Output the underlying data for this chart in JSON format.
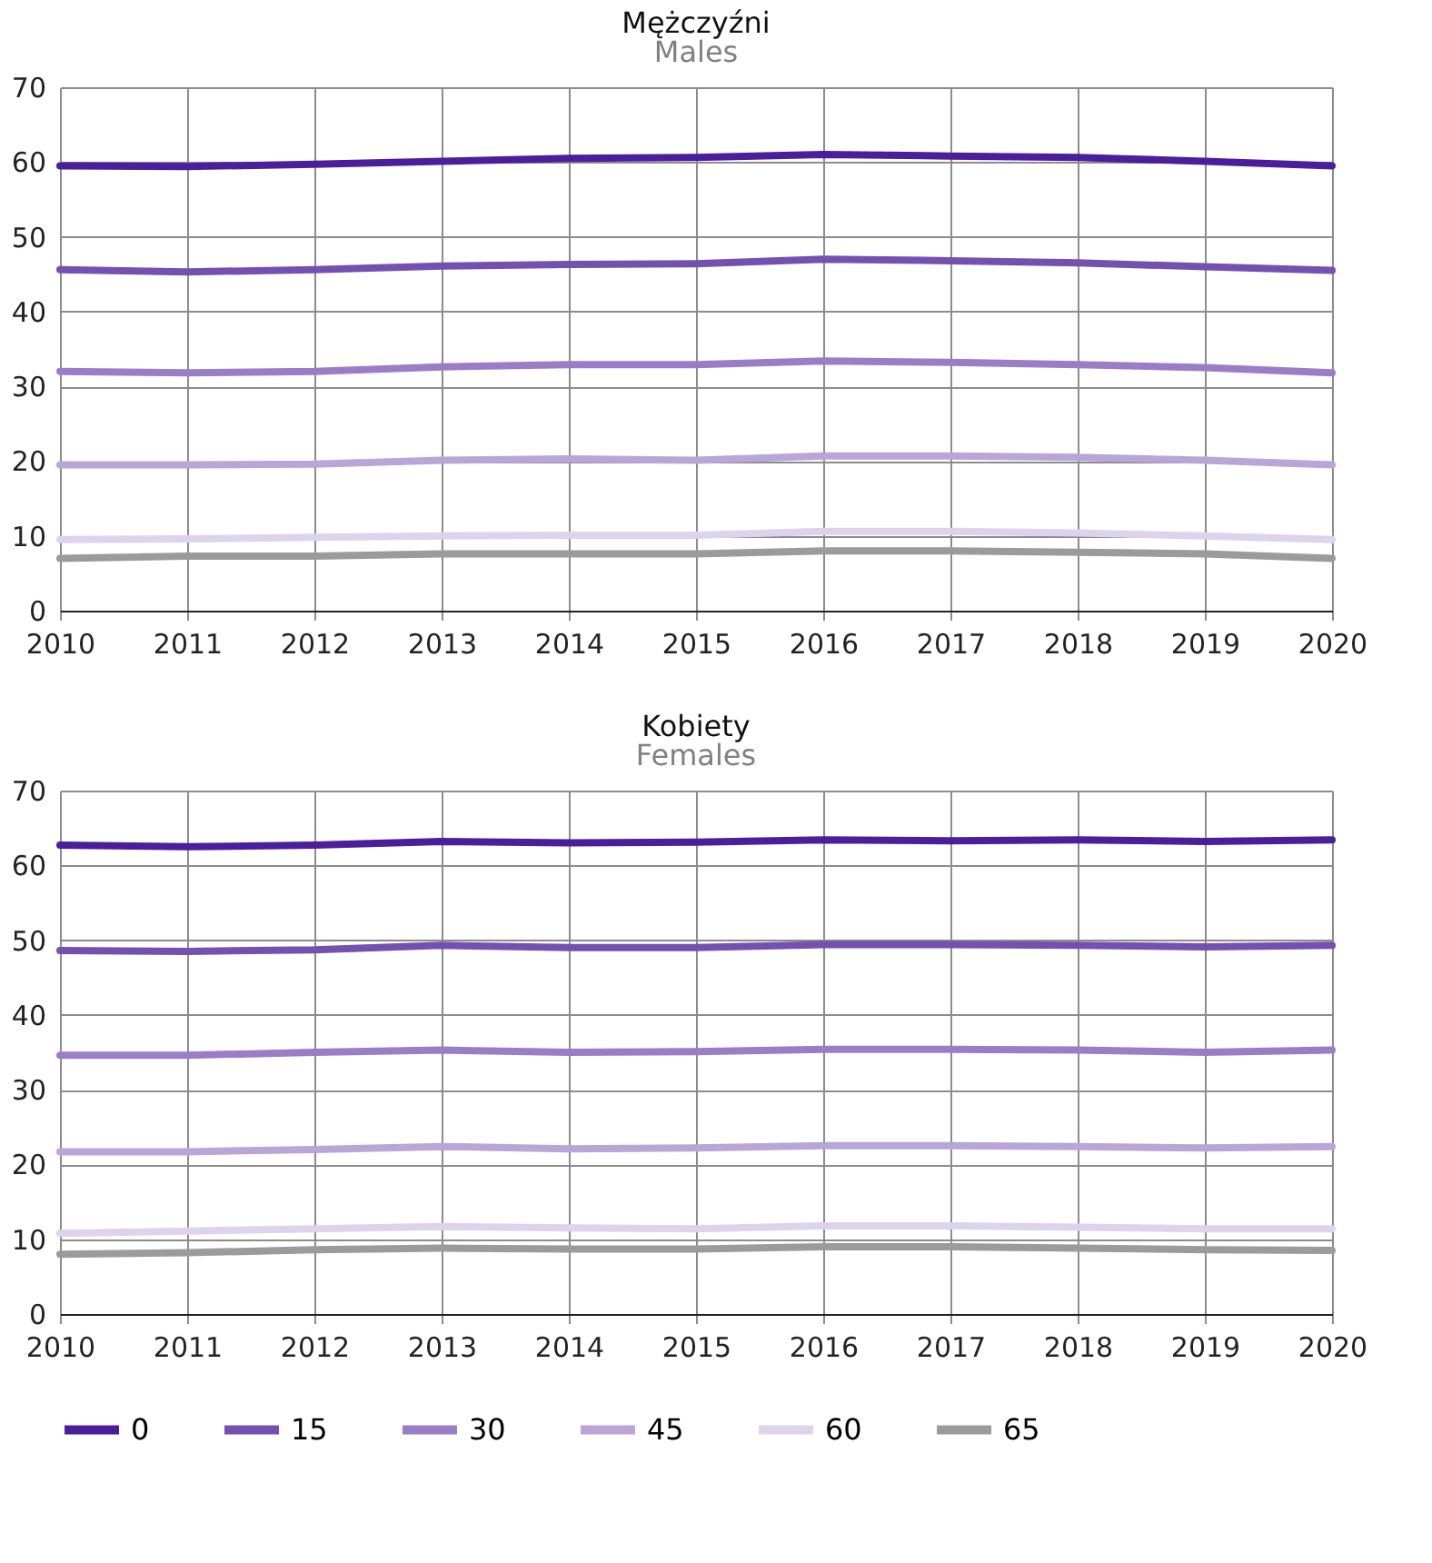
{
  "chart_data": [
    {
      "type": "line",
      "title": "Mężczyźni",
      "subtitle": "Males",
      "x": [
        2010,
        2011,
        2012,
        2013,
        2014,
        2015,
        2016,
        2017,
        2018,
        2019,
        2020
      ],
      "xlim": [
        2010,
        2020
      ],
      "xticks": [
        2010,
        2011,
        2012,
        2013,
        2014,
        2015,
        2016,
        2017,
        2018,
        2019,
        2020
      ],
      "ylim": [
        0,
        70
      ],
      "yticks": [
        0,
        10,
        20,
        30,
        40,
        50,
        60,
        70
      ],
      "grid": true,
      "legend": "bottom",
      "marker": "none",
      "line_style": "solid",
      "series": [
        {
          "name": "0",
          "color": "#4b1e9b",
          "values": [
            59.5,
            59.4,
            59.7,
            60.1,
            60.5,
            60.6,
            61.0,
            60.8,
            60.6,
            60.1,
            59.5
          ]
        },
        {
          "name": "15",
          "color": "#7451b0",
          "values": [
            45.6,
            45.3,
            45.6,
            46.1,
            46.3,
            46.4,
            47.0,
            46.8,
            46.5,
            46.0,
            45.5
          ]
        },
        {
          "name": "30",
          "color": "#9a7dc6",
          "values": [
            32.0,
            31.8,
            32.0,
            32.6,
            32.9,
            32.9,
            33.4,
            33.2,
            32.9,
            32.5,
            31.8
          ]
        },
        {
          "name": "45",
          "color": "#b9a5d8",
          "values": [
            19.5,
            19.5,
            19.6,
            20.1,
            20.3,
            20.1,
            20.7,
            20.7,
            20.5,
            20.1,
            19.5
          ]
        },
        {
          "name": "60",
          "color": "#ddd3ec",
          "values": [
            9.5,
            9.6,
            9.8,
            10.0,
            10.1,
            10.1,
            10.6,
            10.6,
            10.4,
            10.0,
            9.5
          ]
        },
        {
          "name": "65",
          "color": "#9b9b9b",
          "values": [
            7.0,
            7.3,
            7.3,
            7.6,
            7.6,
            7.6,
            8.0,
            8.0,
            7.8,
            7.6,
            7.0
          ]
        }
      ]
    },
    {
      "type": "line",
      "title": "Kobiety",
      "subtitle": "Females",
      "x": [
        2010,
        2011,
        2012,
        2013,
        2014,
        2015,
        2016,
        2017,
        2018,
        2019,
        2020
      ],
      "xlim": [
        2010,
        2020
      ],
      "xticks": [
        2010,
        2011,
        2012,
        2013,
        2014,
        2015,
        2016,
        2017,
        2018,
        2019,
        2020
      ],
      "ylim": [
        0,
        70
      ],
      "yticks": [
        0,
        10,
        20,
        30,
        40,
        50,
        60,
        70
      ],
      "grid": true,
      "legend": "bottom",
      "marker": "none",
      "line_style": "solid",
      "series": [
        {
          "name": "0",
          "color": "#4b1e9b",
          "values": [
            62.7,
            62.5,
            62.7,
            63.2,
            63.0,
            63.1,
            63.4,
            63.3,
            63.4,
            63.2,
            63.4
          ]
        },
        {
          "name": "15",
          "color": "#7451b0",
          "values": [
            48.6,
            48.5,
            48.7,
            49.3,
            49.0,
            49.0,
            49.4,
            49.4,
            49.3,
            49.1,
            49.3
          ]
        },
        {
          "name": "30",
          "color": "#9a7dc6",
          "values": [
            34.6,
            34.6,
            35.0,
            35.3,
            35.0,
            35.1,
            35.4,
            35.4,
            35.3,
            35.0,
            35.3
          ]
        },
        {
          "name": "45",
          "color": "#b9a5d8",
          "values": [
            21.7,
            21.7,
            22.0,
            22.4,
            22.1,
            22.2,
            22.5,
            22.5,
            22.4,
            22.2,
            22.4
          ]
        },
        {
          "name": "60",
          "color": "#ddd3ec",
          "values": [
            10.8,
            11.1,
            11.4,
            11.7,
            11.5,
            11.4,
            11.8,
            11.8,
            11.6,
            11.4,
            11.4
          ]
        },
        {
          "name": "65",
          "color": "#9b9b9b",
          "values": [
            8.0,
            8.2,
            8.6,
            8.8,
            8.7,
            8.7,
            9.0,
            9.0,
            8.8,
            8.6,
            8.5
          ]
        }
      ]
    }
  ]
}
